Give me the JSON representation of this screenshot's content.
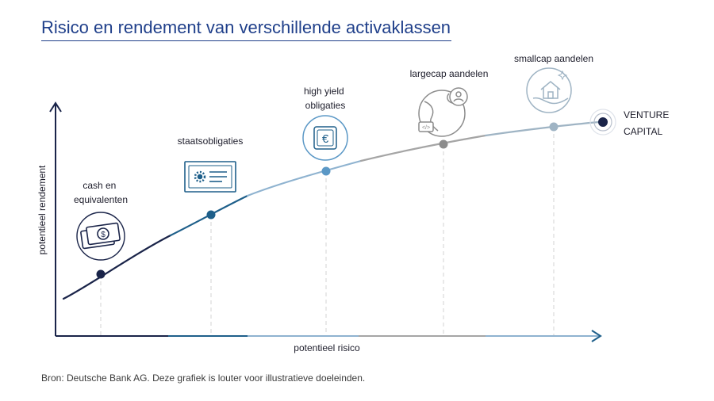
{
  "title": "Risico en rendement van verschillende activaklassen",
  "source": "Bron: Deutsche Bank AG. Deze grafiek is louter voor illustratieve doeleinden.",
  "axes": {
    "y_label": "potentieel rendement",
    "x_label": "potentieel risico"
  },
  "asset_classes": [
    {
      "id": "cash",
      "lines": [
        "cash en",
        "equivalenten"
      ],
      "icon": "cash-icon",
      "color": "#1a2449"
    },
    {
      "id": "staats",
      "lines": [
        "staatsobligaties"
      ],
      "icon": "certificate-icon",
      "color": "#1e5f8a"
    },
    {
      "id": "highyield",
      "lines": [
        "high yield",
        "obligaties"
      ],
      "icon": "euro-icon",
      "color": "#5b98c6"
    },
    {
      "id": "largecap",
      "lines": [
        "largecap aandelen"
      ],
      "icon": "globe-icon",
      "color": "#8c8c8c"
    },
    {
      "id": "smallcap",
      "lines": [
        "smallcap aandelen"
      ],
      "icon": "house-icon",
      "color": "#9fb4c4"
    },
    {
      "id": "venture",
      "lines": [
        "VENTURE",
        "CAPITAL"
      ],
      "icon": "target-icon",
      "color": "#1a2449"
    }
  ],
  "colors": {
    "title": "#1f3f8a",
    "axis": "#1a2449",
    "curve_dark": "#1a2449",
    "curve_blue": "#1e5f8a",
    "curve_light": "#8fb3d0",
    "curve_grey": "#a5a5a5"
  }
}
